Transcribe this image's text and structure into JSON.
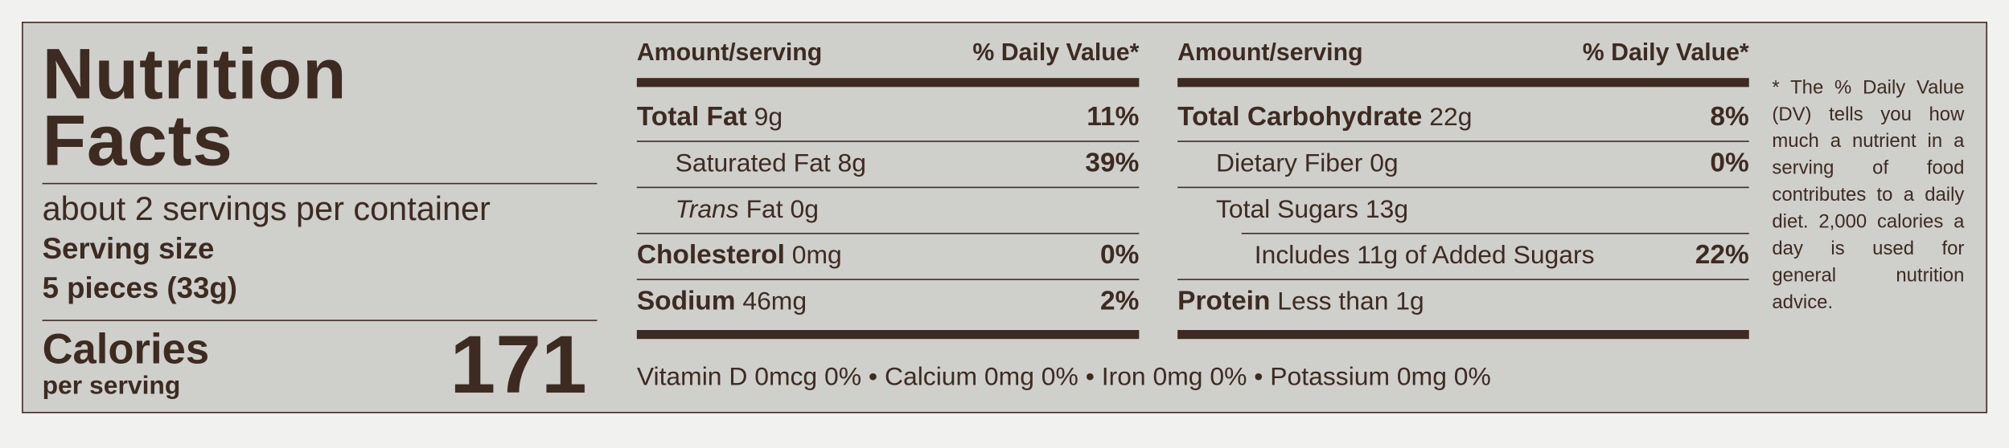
{
  "label": {
    "title_line1": "Nutrition",
    "title_line2": "Facts",
    "servings": "about 2 servings per container",
    "serving_size_label": "Serving size",
    "serving_size": "5 pieces (33g)",
    "calories_label": "Calories",
    "calories_sub": "per serving",
    "calories": "171",
    "columns": [
      {
        "header_amount": "Amount/serving",
        "header_dv": "% Daily Value*",
        "rows": [
          {
            "name": "Total Fat",
            "amount": "9g",
            "dv": "11%",
            "bold": true,
            "indent": 0
          },
          {
            "name": "Saturated Fat",
            "amount": "8g",
            "dv": "39%",
            "bold": false,
            "indent": 1
          },
          {
            "italic": "Trans",
            "name": "Fat",
            "amount": "0g",
            "bold": false,
            "indent": 1
          },
          {
            "name": "Cholesterol",
            "amount": "0mg",
            "dv": "0%",
            "bold": true,
            "indent": 0
          },
          {
            "name": "Sodium",
            "amount": "46mg",
            "dv": "2%",
            "bold": true,
            "indent": 0
          }
        ]
      },
      {
        "header_amount": "Amount/serving",
        "header_dv": "% Daily Value*",
        "rows": [
          {
            "name": "Total Carbohydrate",
            "amount": "22g",
            "dv": "8%",
            "bold": true,
            "indent": 0
          },
          {
            "name": "Dietary Fiber",
            "amount": "0g",
            "dv": "0%",
            "bold": false,
            "indent": 1
          },
          {
            "name": "Total Sugars",
            "amount": "13g",
            "bold": false,
            "indent": 1
          },
          {
            "name": "Includes 11g of Added Sugars",
            "dv": "22%",
            "bold": false,
            "indent": 2
          },
          {
            "name": "Protein",
            "amount": "Less than 1g",
            "bold": true,
            "indent": 0
          }
        ]
      }
    ],
    "micronutrients": [
      {
        "name": "Vitamin D",
        "amount": "0mcg",
        "dv": "0%"
      },
      {
        "name": "Calcium",
        "amount": "0mg",
        "dv": "0%"
      },
      {
        "name": "Iron",
        "amount": "0mg",
        "dv": "0%"
      },
      {
        "name": "Potassium",
        "amount": "0mg",
        "dv": "0%"
      }
    ],
    "separator": "•",
    "footnote": "* The % Daily Value (DV) tells you how much a nutrient in a serving of food contributes to a daily diet. 2,000 calories a day is used for general nutrition advice."
  }
}
